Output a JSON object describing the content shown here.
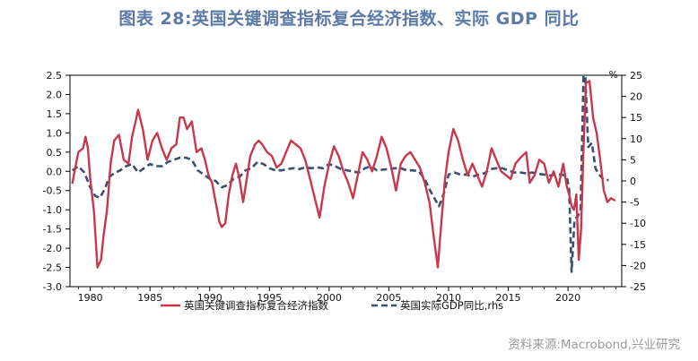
{
  "title": "图表 28:英国关键调查指标复合经济指数、实际 GDP 同比",
  "source": "资料来源:Macrobond,兴业研究",
  "colors": {
    "composite": "#c8374b",
    "gdp": "#3b4f6e",
    "title": "#5b7aa8"
  },
  "chart_data": {
    "type": "line",
    "title": "图表 28:英国关键调查指标复合经济指数、实际 GDP 同比",
    "xlabel": "",
    "ylabel": "",
    "y2label": "%",
    "xlim": [
      1978.3,
      2024.5
    ],
    "ylim": [
      -3.0,
      2.5
    ],
    "y2lim": [
      -25,
      25
    ],
    "x_ticks": [
      1980,
      1985,
      1990,
      1995,
      2000,
      2005,
      2010,
      2015,
      2020
    ],
    "y_ticks": [
      "2.5",
      "2.0",
      "1.5",
      "1.0",
      "0.5",
      "0.0",
      "-0.5",
      "-1.0",
      "-1.5",
      "-2.0",
      "-2.5",
      "-3.0"
    ],
    "y2_ticks": [
      "25",
      "20",
      "15",
      "10",
      "5",
      "0",
      "-5",
      "-10",
      "-15",
      "-20",
      "-25"
    ],
    "grid": false,
    "legend_position": "bottom",
    "series": [
      {
        "name": "英国关键调查指标复合经济指数",
        "axis": "left",
        "style": "solid",
        "x": [
          1978.5,
          1979.0,
          1979.4,
          1979.6,
          1979.8,
          1980.0,
          1980.3,
          1980.6,
          1980.9,
          1981.1,
          1981.4,
          1981.7,
          1982.0,
          1982.4,
          1982.8,
          1983.2,
          1983.5,
          1983.8,
          1984.0,
          1984.4,
          1984.8,
          1985.2,
          1985.6,
          1986.0,
          1986.4,
          1986.8,
          1987.2,
          1987.5,
          1987.8,
          1988.1,
          1988.5,
          1988.9,
          1989.3,
          1989.6,
          1989.9,
          1990.2,
          1990.5,
          1990.8,
          1991.0,
          1991.3,
          1991.6,
          1991.9,
          1992.2,
          1992.5,
          1992.8,
          1993.1,
          1993.4,
          1993.8,
          1994.1,
          1994.4,
          1994.8,
          1995.2,
          1995.6,
          1996.0,
          1996.4,
          1996.8,
          1997.2,
          1997.6,
          1998.0,
          1998.4,
          1998.8,
          1999.2,
          1999.6,
          2000.0,
          2000.4,
          2000.8,
          2001.2,
          2001.6,
          2002.0,
          2002.4,
          2002.8,
          2003.2,
          2003.6,
          2004.0,
          2004.4,
          2004.8,
          2005.2,
          2005.6,
          2006.0,
          2006.4,
          2006.8,
          2007.2,
          2007.6,
          2008.0,
          2008.4,
          2008.8,
          2009.1,
          2009.4,
          2009.7,
          2010.0,
          2010.4,
          2010.8,
          2011.2,
          2011.6,
          2012.0,
          2012.4,
          2012.8,
          2013.2,
          2013.6,
          2014.0,
          2014.4,
          2014.8,
          2015.2,
          2015.6,
          2016.0,
          2016.5,
          2016.8,
          2017.2,
          2017.6,
          2018.0,
          2018.4,
          2018.8,
          2019.2,
          2019.6,
          2019.9,
          2020.1,
          2020.3,
          2020.5,
          2020.7,
          2020.9,
          2021.1,
          2021.3,
          2021.5,
          2021.8,
          2022.1,
          2022.4,
          2022.7,
          2023.0,
          2023.3,
          2023.6,
          2023.9
        ],
        "y": [
          -0.3,
          0.5,
          0.6,
          0.9,
          0.6,
          -0.2,
          -1.0,
          -2.5,
          -2.3,
          -1.7,
          -1.0,
          0.2,
          0.8,
          0.95,
          0.3,
          0.2,
          0.9,
          1.3,
          1.6,
          1.1,
          0.3,
          0.8,
          1.0,
          0.6,
          0.3,
          0.6,
          0.7,
          1.4,
          1.4,
          1.1,
          1.3,
          0.5,
          0.6,
          0.3,
          -0.1,
          -0.3,
          -0.8,
          -1.3,
          -1.45,
          -1.35,
          -0.6,
          -0.1,
          0.2,
          -0.2,
          -0.8,
          -0.2,
          0.4,
          0.7,
          0.8,
          0.7,
          0.5,
          0.4,
          0.1,
          0.2,
          0.5,
          0.8,
          0.7,
          0.6,
          0.3,
          -0.2,
          -0.7,
          -1.2,
          -0.4,
          0.2,
          0.65,
          0.4,
          0.0,
          -0.3,
          -0.7,
          -0.1,
          0.5,
          0.3,
          0.0,
          0.4,
          0.9,
          0.6,
          0.1,
          -0.5,
          0.2,
          0.4,
          0.5,
          0.3,
          0.1,
          -0.3,
          -0.8,
          -1.8,
          -2.5,
          -1.3,
          -0.2,
          0.5,
          1.1,
          0.8,
          0.3,
          -0.1,
          0.2,
          -0.1,
          -0.4,
          0.0,
          0.6,
          0.3,
          0.0,
          -0.1,
          -0.2,
          0.2,
          0.35,
          0.5,
          -0.3,
          -0.1,
          0.3,
          0.2,
          -0.3,
          0.0,
          -0.4,
          0.2,
          -0.4,
          -0.6,
          -0.9,
          -1.0,
          -0.6,
          -2.3,
          -1.5,
          0.6,
          2.3,
          2.35,
          1.4,
          1.0,
          0.3,
          -0.5,
          -0.8,
          -0.7,
          -0.75
        ]
      },
      {
        "name": "英国实际GDP同比,rhs",
        "axis": "right",
        "style": "dashed",
        "x": [
          1978.5,
          1979.0,
          1979.5,
          1980.0,
          1980.4,
          1980.8,
          1981.2,
          1981.6,
          1982.0,
          1982.5,
          1983.0,
          1983.5,
          1984.0,
          1984.5,
          1985.0,
          1985.5,
          1986.0,
          1986.5,
          1987.0,
          1987.5,
          1988.0,
          1988.5,
          1989.0,
          1989.5,
          1990.0,
          1990.5,
          1991.0,
          1991.5,
          1992.0,
          1992.5,
          1993.0,
          1993.5,
          1994.0,
          1994.5,
          1995.0,
          1995.5,
          1996.0,
          1996.5,
          1997.0,
          1997.5,
          1998.0,
          1998.5,
          1999.0,
          1999.5,
          2000.0,
          2000.5,
          2001.0,
          2001.5,
          2002.0,
          2002.5,
          2003.0,
          2003.5,
          2004.0,
          2004.5,
          2005.0,
          2005.5,
          2006.0,
          2006.5,
          2007.0,
          2007.5,
          2008.0,
          2008.4,
          2008.8,
          2009.2,
          2009.6,
          2010.0,
          2010.5,
          2011.0,
          2011.5,
          2012.0,
          2012.5,
          2013.0,
          2013.5,
          2014.0,
          2014.5,
          2015.0,
          2015.5,
          2016.0,
          2016.5,
          2017.0,
          2017.5,
          2018.0,
          2018.5,
          2019.0,
          2019.5,
          2019.9,
          2020.1,
          2020.3,
          2020.55,
          2020.8,
          2021.05,
          2021.3,
          2021.45,
          2021.7,
          2022.0,
          2022.3,
          2022.6,
          2023.0,
          2023.4
        ],
        "y": [
          2.5,
          3.5,
          2.0,
          -1.5,
          -3.5,
          -4.0,
          -2.0,
          1.0,
          1.8,
          2.5,
          3.5,
          4.0,
          2.0,
          3.0,
          4.0,
          3.5,
          3.5,
          4.5,
          5.0,
          5.5,
          5.5,
          5.0,
          2.5,
          1.5,
          0.5,
          0.0,
          -1.5,
          -1.0,
          0.5,
          1.0,
          2.5,
          3.0,
          4.5,
          4.0,
          3.0,
          2.5,
          2.5,
          2.8,
          3.0,
          2.8,
          3.2,
          3.0,
          3.2,
          3.0,
          4.0,
          3.5,
          2.8,
          2.5,
          2.2,
          2.0,
          3.0,
          3.5,
          2.5,
          2.7,
          2.8,
          3.0,
          3.0,
          2.5,
          2.5,
          2.3,
          0.5,
          -2.0,
          -4.0,
          -6.0,
          -3.0,
          1.5,
          2.0,
          1.5,
          1.5,
          1.0,
          1.5,
          1.8,
          2.8,
          3.0,
          3.0,
          2.5,
          2.0,
          2.0,
          1.8,
          2.0,
          1.7,
          1.5,
          1.3,
          1.5,
          1.5,
          1.0,
          -2.0,
          -21.5,
          -9.0,
          -8.5,
          -7.0,
          25.0,
          24.5,
          8.0,
          9.0,
          3.0,
          1.5,
          0.3,
          0.2
        ]
      }
    ]
  }
}
